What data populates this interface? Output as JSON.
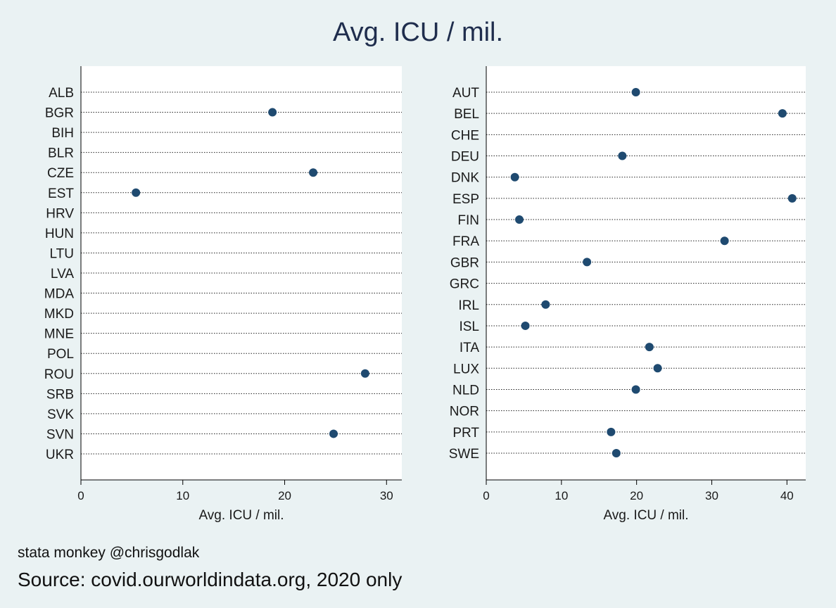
{
  "title": "Avg. ICU / mil.",
  "credit": "stata monkey @chrisgodlak",
  "source": "Source: covid.ourworldindata.org, 2020 only",
  "colors": {
    "background": "#eaf2f3",
    "panel": "#ffffff",
    "marker": "#1f4a70",
    "title": "#1f2d4d"
  },
  "chart_data": [
    {
      "type": "scatter",
      "xlabel": "Avg. ICU / mil.",
      "xlim": [
        0,
        31.5
      ],
      "xticks": [
        0,
        10,
        20,
        30
      ],
      "grid": "dotted horizontal per category",
      "categories": [
        "ALB",
        "BGR",
        "BIH",
        "BLR",
        "CZE",
        "EST",
        "HRV",
        "HUN",
        "LTU",
        "LVA",
        "MDA",
        "MKD",
        "MNE",
        "POL",
        "ROU",
        "SRB",
        "SVK",
        "SVN",
        "UKR"
      ],
      "values": [
        null,
        18.8,
        null,
        null,
        22.8,
        5.4,
        null,
        null,
        null,
        null,
        null,
        null,
        null,
        null,
        27.9,
        null,
        null,
        24.8,
        null
      ]
    },
    {
      "type": "scatter",
      "xlabel": "Avg. ICU / mil.",
      "xlim": [
        0,
        42.5
      ],
      "xticks": [
        0,
        10,
        20,
        30,
        40
      ],
      "grid": "dotted horizontal per category",
      "categories": [
        "AUT",
        "BEL",
        "CHE",
        "DEU",
        "DNK",
        "ESP",
        "FIN",
        "FRA",
        "GBR",
        "GRC",
        "IRL",
        "ISL",
        "ITA",
        "LUX",
        "NLD",
        "NOR",
        "PRT",
        "SWE"
      ],
      "values": [
        19.9,
        39.4,
        null,
        18.1,
        3.8,
        40.7,
        4.4,
        31.7,
        13.4,
        null,
        7.9,
        5.2,
        21.7,
        22.8,
        19.9,
        null,
        16.6,
        17.3
      ]
    }
  ]
}
